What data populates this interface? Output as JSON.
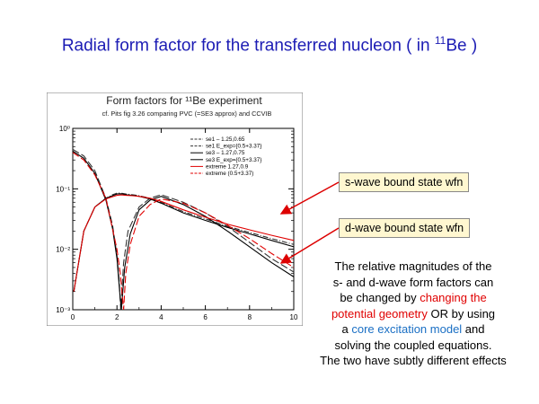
{
  "slide": {
    "title_pre": "Radial form factor for the transferred nucleon ( in ",
    "title_sup": "11",
    "title_post": "Be )"
  },
  "figure": {
    "title": "Form factors for ¹¹Be experiment",
    "subtitle": "cf. Pits fig 3.26 comparing PVC (=SE3 approx) and CCVIB",
    "x_ticks": [
      "0",
      "2",
      "4",
      "6",
      "8",
      "10"
    ],
    "y_ticks": [
      "10⁰",
      "10⁻¹",
      "10⁻²",
      "10⁻³"
    ]
  },
  "chart_data": {
    "type": "line",
    "title": "Form factors for ¹¹Be experiment",
    "subtitle": "cf. Pits fig 3.26 comparing PVC (=SE3 approx) and CCVIB",
    "xlim": [
      0,
      10
    ],
    "ylim": [
      0.001,
      1
    ],
    "y_scale": "log",
    "grid": false,
    "legend_position": "top-right",
    "series": [
      {
        "name": "se1 – 1.25,0.65",
        "color": "#333333",
        "dash": "6,2,1,2",
        "x": [
          0.05,
          0.5,
          1,
          1.5,
          1.8,
          2,
          2.15,
          2.25,
          2.4,
          2.7,
          3,
          3.5,
          4,
          5,
          6,
          7,
          8,
          9,
          10
        ],
        "y": [
          0.002,
          0.02,
          0.05,
          0.07,
          0.08,
          0.085,
          0.085,
          0.084,
          0.082,
          0.08,
          0.077,
          0.07,
          0.06,
          0.042,
          0.032,
          0.024,
          0.019,
          0.015,
          0.012
        ]
      },
      {
        "name": "se1 E_exp={0.5+3.37}",
        "color": "#333333",
        "dash": "8,3",
        "x": [
          0,
          0.5,
          1,
          1.5,
          1.8,
          2,
          2.1,
          2.17,
          2.3,
          2.5,
          3,
          3.5,
          4,
          5,
          6,
          7,
          8,
          9,
          10
        ],
        "y": [
          0.45,
          0.35,
          0.2,
          0.07,
          0.025,
          0.008,
          0.003,
          0.001,
          0.006,
          0.02,
          0.05,
          0.07,
          0.08,
          0.06,
          0.04,
          0.024,
          0.013,
          0.007,
          0.0042
        ]
      },
      {
        "name": "se3 – 1.27,0.75",
        "color": "#000000",
        "dash": "",
        "x": [
          0.05,
          0.5,
          1,
          1.5,
          1.8,
          2,
          2.15,
          2.25,
          2.4,
          2.7,
          3,
          3.5,
          4,
          5,
          6,
          7,
          8,
          9,
          10
        ],
        "y": [
          0.002,
          0.02,
          0.05,
          0.07,
          0.077,
          0.082,
          0.083,
          0.082,
          0.08,
          0.078,
          0.075,
          0.068,
          0.058,
          0.04,
          0.03,
          0.023,
          0.018,
          0.014,
          0.011
        ]
      },
      {
        "name": "se3 E_exp={0.5+3.37}",
        "color": "#000000",
        "dash": "",
        "x": [
          0,
          0.5,
          1,
          1.5,
          1.8,
          2,
          2.15,
          2.2,
          2.35,
          2.6,
          3,
          3.5,
          4,
          5,
          6,
          7,
          8,
          9,
          10
        ],
        "y": [
          0.42,
          0.32,
          0.18,
          0.065,
          0.022,
          0.007,
          0.0015,
          0.001,
          0.005,
          0.018,
          0.045,
          0.065,
          0.075,
          0.055,
          0.035,
          0.02,
          0.011,
          0.006,
          0.0035
        ]
      },
      {
        "name": "extreme 1.27,0.9",
        "color": "#e00000",
        "dash": "",
        "x": [
          0.05,
          0.5,
          1,
          1.5,
          1.8,
          2,
          2.15,
          2.25,
          2.4,
          2.7,
          3,
          3.5,
          4,
          5,
          6,
          7,
          8,
          9,
          10
        ],
        "y": [
          0.002,
          0.02,
          0.05,
          0.068,
          0.074,
          0.078,
          0.079,
          0.079,
          0.078,
          0.077,
          0.075,
          0.07,
          0.062,
          0.045,
          0.034,
          0.026,
          0.021,
          0.017,
          0.014
        ]
      },
      {
        "name": "extreme (0.5+3.37)",
        "color": "#e00000",
        "dash": "8,3",
        "x": [
          0,
          0.5,
          1,
          1.5,
          2,
          2.15,
          2.3,
          2.4,
          2.6,
          3,
          3.5,
          4,
          5,
          6,
          7,
          8,
          9,
          10
        ],
        "y": [
          0.4,
          0.3,
          0.17,
          0.07,
          0.01,
          0.004,
          0.001,
          0.004,
          0.012,
          0.035,
          0.055,
          0.068,
          0.058,
          0.04,
          0.025,
          0.015,
          0.0085,
          0.005
        ]
      }
    ]
  },
  "callouts": {
    "s_wave": "s-wave bound state wfn",
    "d_wave": "d-wave bound state wfn"
  },
  "note": {
    "line1": "The relative magnitudes of the",
    "line2": "s- and d-wave form factors can",
    "line3_pre": "be changed by ",
    "line3_red": "changing the",
    "line4_red": "potential geometry",
    "line4_post": " OR by using",
    "line5_pre": "a ",
    "line5_blue": "core excitation model",
    "line5_post": " and",
    "line6": "solving the coupled equations.",
    "line7": "The two have subtly different effects"
  },
  "colors": {
    "title": "#1c1cb4",
    "callout_bg": "#fff7d0",
    "arrow": "#dd0000",
    "highlight_red": "#e00000",
    "highlight_blue": "#1a6fc4"
  }
}
